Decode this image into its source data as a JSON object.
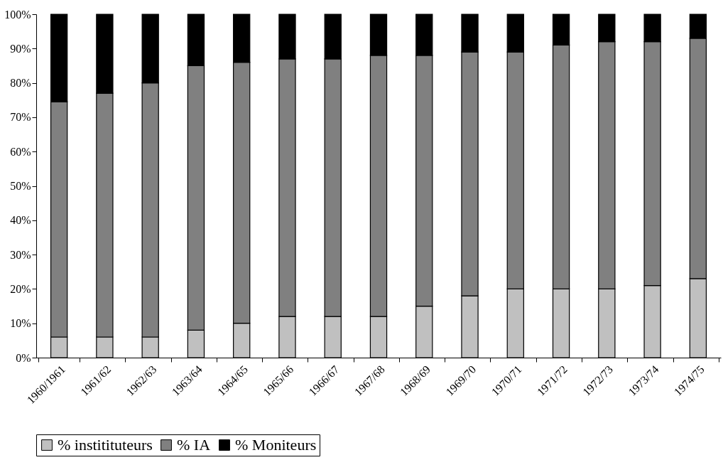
{
  "chart_data": {
    "type": "bar",
    "stacked": true,
    "categories": [
      "1960/1961",
      "1961/62",
      "1962/63",
      "1963/64",
      "1964/65",
      "1965/66",
      "1966/67",
      "1967/68",
      "1968/69",
      "1969/70",
      "1970/71",
      "1971/72",
      "1972/73",
      "1973/74",
      "1974/75"
    ],
    "series": [
      {
        "name": "% institituteurs",
        "color": "#c0c0c0",
        "values": [
          6,
          6,
          6,
          8,
          10,
          12,
          12,
          12,
          15,
          18,
          20,
          20,
          20,
          21,
          23
        ]
      },
      {
        "name": "% IA",
        "color": "#808080",
        "values": [
          68.5,
          71,
          74,
          77,
          76,
          75,
          75,
          76,
          73,
          71,
          69,
          71,
          72,
          71,
          70
        ]
      },
      {
        "name": "% Moniteurs",
        "color": "#000000",
        "values": [
          25.5,
          23,
          20,
          15,
          14,
          13,
          13,
          12,
          12,
          11,
          11,
          9,
          8,
          8,
          7
        ]
      }
    ],
    "ylim": [
      0,
      100
    ],
    "yticks": [
      {
        "value": 0,
        "label": "0%"
      },
      {
        "value": 10,
        "label": "10%"
      },
      {
        "value": 20,
        "label": "20%"
      },
      {
        "value": 30,
        "label": "30%"
      },
      {
        "value": 40,
        "label": "40%"
      },
      {
        "value": 50,
        "label": "50%"
      },
      {
        "value": 60,
        "label": "60%"
      },
      {
        "value": 70,
        "label": "70%"
      },
      {
        "value": 80,
        "label": "80%"
      },
      {
        "value": 90,
        "label": "90%"
      },
      {
        "value": 100,
        "label": "100%"
      }
    ],
    "grid": false,
    "legend": "bottom"
  }
}
